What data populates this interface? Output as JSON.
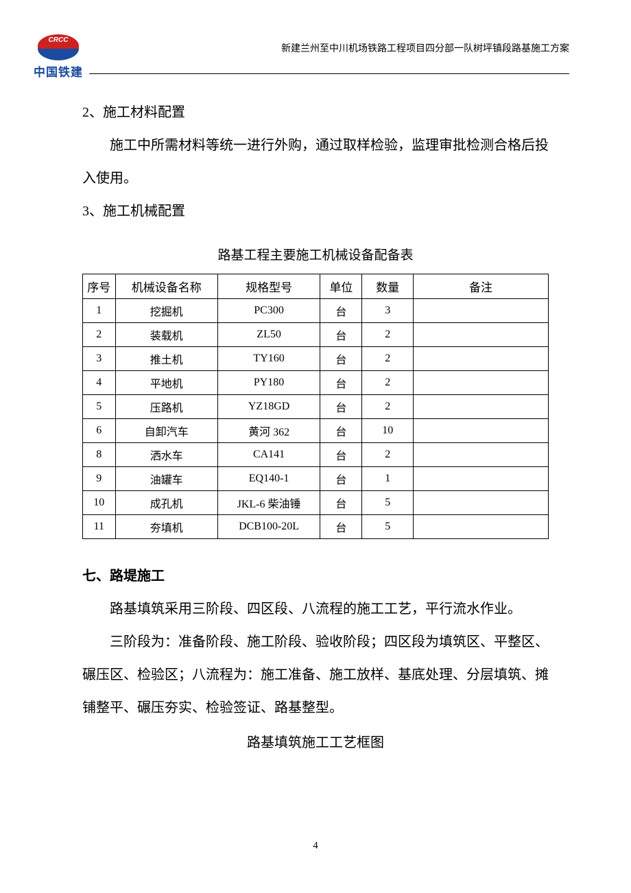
{
  "header": {
    "logo_text": "中国铁建",
    "doc_title": "新建兰州至中川机场铁路工程项目四分部一队树坪镇段路基施工方案"
  },
  "sections": {
    "s2_title": "2、施工材料配置",
    "s2_body": "施工中所需材料等统一进行外购，通过取样检验，监理审批检测合格后投入使用。",
    "s3_title": "3、施工机械配置",
    "s7_title": "七、路堤施工",
    "s7_p1": "路基填筑采用三阶段、四区段、八流程的施工工艺，平行流水作业。",
    "s7_p2": "三阶段为：准备阶段、施工阶段、验收阶段；四区段为填筑区、平整区、碾压区、检验区；八流程为：施工准备、施工放样、基底处理、分层填筑、摊铺整平、碾压夯实、检验签证、路基整型。",
    "chart_title": "路基填筑施工工艺框图"
  },
  "table": {
    "title": "路基工程主要施工机械设备配备表",
    "columns": [
      "序号",
      "机械设备名称",
      "规格型号",
      "单位",
      "数量",
      "备注"
    ],
    "rows": [
      {
        "seq": "1",
        "name": "挖掘机",
        "spec": "PC300",
        "unit": "台",
        "qty": "3",
        "note": ""
      },
      {
        "seq": "2",
        "name": "装载机",
        "spec": "ZL50",
        "unit": "台",
        "qty": "2",
        "note": ""
      },
      {
        "seq": "3",
        "name": "推土机",
        "spec": "TY160",
        "unit": "台",
        "qty": "2",
        "note": ""
      },
      {
        "seq": "4",
        "name": "平地机",
        "spec": "PY180",
        "unit": "台",
        "qty": "2",
        "note": ""
      },
      {
        "seq": "5",
        "name": "压路机",
        "spec": "YZ18GD",
        "unit": "台",
        "qty": "2",
        "note": ""
      },
      {
        "seq": "6",
        "name": "自卸汽车",
        "spec": "黄河 362",
        "unit": "台",
        "qty": "10",
        "note": ""
      },
      {
        "seq": "8",
        "name": "洒水车",
        "spec": "CA141",
        "unit": "台",
        "qty": "2",
        "note": ""
      },
      {
        "seq": "9",
        "name": "油罐车",
        "spec": "EQ140-1",
        "unit": "台",
        "qty": "1",
        "note": ""
      },
      {
        "seq": "10",
        "name": "成孔机",
        "spec": "JKL-6 柴油锤",
        "unit": "台",
        "qty": "5",
        "note": ""
      },
      {
        "seq": "11",
        "name": "夯填机",
        "spec": "DCB100-20L",
        "unit": "台",
        "qty": "5",
        "note": ""
      }
    ]
  },
  "page_number": "4"
}
